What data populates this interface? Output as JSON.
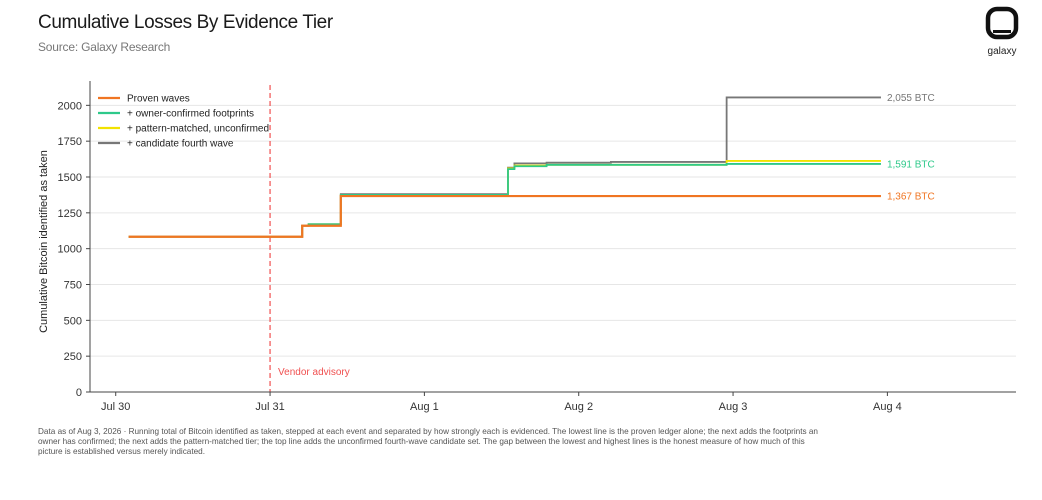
{
  "header": {
    "title": "Cumulative Losses By Evidence Tier",
    "subtitle": "Source: Galaxy Research"
  },
  "logo": {
    "icon": "galaxy-logo-icon",
    "text": "galaxy"
  },
  "footnote": "Data as of Aug 3, 2026 · Running total of Bitcoin identified as taken, stepped at each event and separated by how strongly each is evidenced. The lowest line is the proven ledger alone; the next adds the footprints an owner has confirmed; the next adds the pattern-matched tier; the top line adds the unconfirmed fourth-wave candidate set. The gap between the lowest and highest lines is the honest measure of how much of this picture is established versus merely indicated.",
  "chart_data": {
    "type": "line",
    "step": true,
    "xlabel": "",
    "ylabel": "Cumulative Bitcoin identified as taken",
    "xlim": [
      "Jul 29 20:00",
      "Aug 4 20:00"
    ],
    "ylim": [
      0,
      2100
    ],
    "x_ticks": [
      "Jul 30",
      "Jul 31",
      "Aug 1",
      "Aug 2",
      "Aug 3",
      "Aug 4"
    ],
    "y_ticks": [
      0,
      250,
      500,
      750,
      1000,
      1250,
      1500,
      1750,
      2000
    ],
    "grid": "horizontal",
    "legend_position": "top-left",
    "annotations": [
      {
        "x": "Jul 31 00:00",
        "label": "Vendor advisory",
        "color": "#f05050"
      }
    ],
    "series": [
      {
        "name": "+ candidate fourth wave",
        "color": "#777777",
        "end_label": "2,055 BTC",
        "points": [
          [
            "Jul 30 02:00",
            1083
          ],
          [
            "Jul 31 05:00",
            1160
          ],
          [
            "Jul 31 06:00",
            1170
          ],
          [
            "Jul 31 11:00",
            1380
          ],
          [
            "Aug 1 13:00",
            1565
          ],
          [
            "Aug 1 14:00",
            1595
          ],
          [
            "Aug 1 19:00",
            1600
          ],
          [
            "Aug 2 05:00",
            1605
          ],
          [
            "Aug 2 23:00",
            2055
          ],
          [
            "Aug 3 23:00",
            2055
          ]
        ]
      },
      {
        "name": "+ pattern-matched, unconfirmed",
        "color": "#f2e200",
        "end_label": "",
        "points": [
          [
            "Jul 30 02:00",
            1083
          ],
          [
            "Jul 31 05:00",
            1160
          ],
          [
            "Jul 31 06:00",
            1170
          ],
          [
            "Jul 31 11:00",
            1375
          ],
          [
            "Aug 1 13:00",
            1560
          ],
          [
            "Aug 1 14:00",
            1580
          ],
          [
            "Aug 1 19:00",
            1585
          ],
          [
            "Aug 2 23:00",
            1612
          ],
          [
            "Aug 3 23:00",
            1612
          ]
        ]
      },
      {
        "name": "+ owner-confirmed footprints",
        "color": "#2ec98a",
        "end_label": "1,591 BTC",
        "points": [
          [
            "Jul 30 02:00",
            1083
          ],
          [
            "Jul 31 05:00",
            1160
          ],
          [
            "Jul 31 06:00",
            1170
          ],
          [
            "Jul 31 11:00",
            1375
          ],
          [
            "Aug 1 13:00",
            1555
          ],
          [
            "Aug 1 14:00",
            1575
          ],
          [
            "Aug 1 19:00",
            1585
          ],
          [
            "Aug 2 23:00",
            1591
          ],
          [
            "Aug 3 23:00",
            1591
          ]
        ]
      },
      {
        "name": "Proven waves",
        "color": "#f07522",
        "end_label": "1,367 BTC",
        "points": [
          [
            "Jul 30 02:00",
            1083
          ],
          [
            "Jul 31 05:00",
            1160
          ],
          [
            "Jul 31 11:00",
            1367
          ],
          [
            "Aug 3 23:00",
            1367
          ]
        ]
      }
    ],
    "legend_order": [
      "Proven waves",
      "+ owner-confirmed footprints",
      "+ pattern-matched, unconfirmed",
      "+ candidate fourth wave"
    ]
  }
}
